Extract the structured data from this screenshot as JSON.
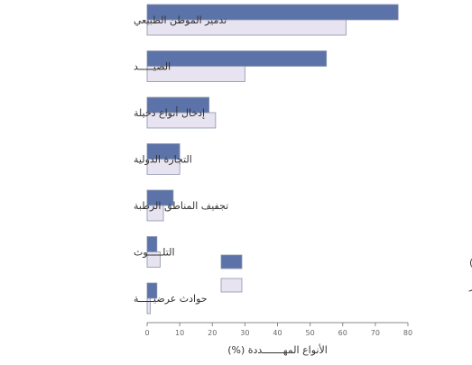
{
  "chart_data": {
    "type": "bar",
    "orientation": "horizontal",
    "categories": [
      "تدمير الموطن الطبيعي",
      "الصيـــــد",
      "إدخال أنواع دخيلة",
      "التجارة الدولية",
      "تجفيف المناطق الرطبة",
      "التلـــــوث",
      "حوادث عرضيـــــة"
    ],
    "series": [
      {
        "name": "الثدييـــــــات (في أستراليا والأمريكتين)",
        "values": [
          77,
          55,
          19,
          10,
          8,
          3,
          3
        ],
        "color": "#5b73a8"
      },
      {
        "name": "الطيـــــور",
        "values": [
          61,
          30,
          21,
          10,
          5,
          4,
          1
        ],
        "color": "#e8e3f0"
      }
    ],
    "xlabel": "الأنواع المهـــــــددة (%)",
    "xticks": [
      "0",
      "10",
      "20",
      "30",
      "40",
      "50",
      "60",
      "70",
      "80"
    ],
    "xlim": [
      0,
      80
    ],
    "legend_position": "bottom-right"
  }
}
